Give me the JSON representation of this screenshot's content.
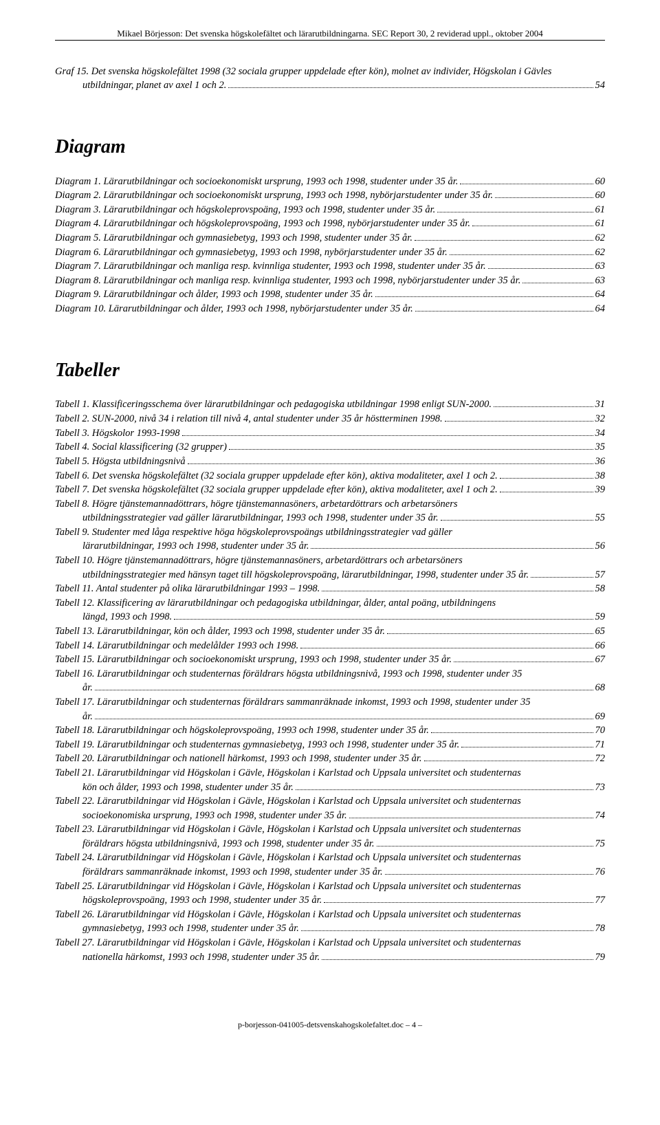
{
  "header": {
    "line": "Mikael Börjesson: Det svenska högskolefältet och lärarutbildningarna. SEC Report 30, 2 reviderad uppl., oktober 2004"
  },
  "graf": {
    "entries": [
      {
        "label": "Graf 15. Det svenska högskolefältet 1998 (32 sociala grupper uppdelade efter kön), molnet av individer, Högskolan i Gävles utbildningar, planet av axel 1 och 2.",
        "indentLabel": "",
        "page": "54"
      }
    ]
  },
  "diagram": {
    "heading": "Diagram",
    "entries": [
      {
        "label": "Diagram 1. Lärarutbildningar och socioekonomiskt ursprung, 1993 och 1998, studenter under 35 år.",
        "page": "60"
      },
      {
        "label": "Diagram 2. Lärarutbildningar och socioekonomiskt ursprung, 1993 och 1998, nybörjarstudenter under 35 år.",
        "page": "60"
      },
      {
        "label": "Diagram 3. Lärarutbildningar och högskoleprovspoäng, 1993 och 1998, studenter under 35 år.",
        "page": "61"
      },
      {
        "label": "Diagram 4. Lärarutbildningar och högskoleprovspoäng, 1993 och 1998, nybörjarstudenter under 35 år.",
        "page": "61"
      },
      {
        "label": "Diagram 5. Lärarutbildningar och gymnasiebetyg, 1993 och 1998, studenter under 35 år.",
        "page": "62"
      },
      {
        "label": "Diagram 6. Lärarutbildningar och gymnasiebetyg, 1993 och 1998, nybörjarstudenter under 35 år.",
        "page": "62"
      },
      {
        "label": "Diagram 7. Lärarutbildningar och manliga resp. kvinnliga studenter, 1993 och 1998, studenter under 35 år.",
        "page": "63"
      },
      {
        "label": "Diagram 8. Lärarutbildningar och manliga resp. kvinnliga studenter, 1993 och 1998, nybörjarstudenter under 35 år.",
        "page": "63"
      },
      {
        "label": "Diagram 9. Lärarutbildningar och ålder, 1993 och 1998, studenter under 35 år.",
        "page": "64"
      },
      {
        "label": "Diagram 10. Lärarutbildningar och ålder, 1993 och 1998, nybörjarstudenter under 35 år.",
        "page": "64"
      }
    ]
  },
  "tabeller": {
    "heading": "Tabeller",
    "entries": [
      {
        "label": "Tabell 1. Klassificeringsschema över lärarutbildningar och pedagogiska utbildningar 1998 enligt SUN-2000.",
        "page": "31"
      },
      {
        "label": "Tabell 2. SUN-2000, nivå 34 i relation till nivå 4, antal studenter under 35 år höstterminen 1998.",
        "page": "32"
      },
      {
        "label": "Tabell 3. Högskolor 1993-1998",
        "page": "34"
      },
      {
        "label": "Tabell 4. Social klassificering (32 grupper)",
        "page": "35"
      },
      {
        "label": "Tabell 5. Högsta utbildningsnivå",
        "page": "36"
      },
      {
        "label": "Tabell 6. Det svenska högskolefältet (32 sociala grupper uppdelade efter kön), aktiva modaliteter, axel 1 och 2.",
        "page": "38"
      },
      {
        "label": "Tabell 7. Det svenska högskolefältet (32 sociala grupper uppdelade efter kön), aktiva modaliteter, axel 1 och 2.",
        "page": "39"
      },
      {
        "label": "Tabell 8. Högre tjänstemannadöttrars, högre tjänstemannasöners, arbetardöttrars och arbetarsöners utbildningsstrategier vad gäller lärarutbildningar, 1993 och 1998, studenter under 35 år.",
        "page": "55",
        "wrap": true
      },
      {
        "label": "Tabell 9. Studenter med låga respektive höga högskoleprovspoängs utbildningsstrategier vad gäller lärarutbildningar, 1993 och 1998, studenter under 35 år.",
        "page": "56",
        "wrap": true
      },
      {
        "label": "Tabell 10. Högre tjänstemannadöttrars, högre tjänstemannasöners, arbetardöttrars och arbetarsöners utbildningsstrategier med hänsyn taget till högskoleprovspoäng, lärarutbildningar, 1998, studenter under 35 år.",
        "page": "57",
        "wrap": true
      },
      {
        "label": "Tabell 11. Antal studenter på olika lärarutbildningar 1993 – 1998.",
        "page": "58"
      },
      {
        "label": "Tabell 12. Klassificering av lärarutbildningar och pedagogiska utbildningar, ålder, antal poäng, utbildningens längd, 1993 och 1998.",
        "page": "59",
        "wrap": true
      },
      {
        "label": "Tabell 13. Lärarutbildningar, kön och ålder, 1993 och 1998, studenter under 35 år.",
        "page": "65"
      },
      {
        "label": "Tabell 14. Lärarutbildningar och medelålder 1993 och 1998.",
        "page": "66"
      },
      {
        "label": "Tabell 15. Lärarutbildningar och socioekonomiskt ursprung, 1993 och 1998, studenter under 35 år.",
        "page": "67"
      },
      {
        "label": "Tabell 16. Lärarutbildningar och studenternas föräldrars högsta utbildningsnivå, 1993 och 1998, studenter under 35 år.",
        "page": "68"
      },
      {
        "label": "Tabell 17. Lärarutbildningar och studenternas föräldrars sammanräknade inkomst, 1993 och 1998, studenter under 35 år.",
        "page": "69"
      },
      {
        "label": "Tabell 18. Lärarutbildningar och högskoleprovspoäng, 1993 och 1998, studenter under 35 år.",
        "page": "70"
      },
      {
        "label": "Tabell 19. Lärarutbildningar och studenternas gymnasiebetyg, 1993 och 1998, studenter under 35 år.",
        "page": "71"
      },
      {
        "label": "Tabell 20. Lärarutbildningar och nationell härkomst, 1993 och 1998, studenter under 35 år.",
        "page": "72"
      },
      {
        "label": "Tabell 21. Lärarutbildningar vid Högskolan i Gävle, Högskolan i Karlstad och Uppsala universitet och studenternas kön och ålder, 1993 och 1998, studenter under 35 år.",
        "page": "73",
        "wrap": true
      },
      {
        "label": "Tabell 22. Lärarutbildningar vid Högskolan i Gävle, Högskolan i Karlstad och Uppsala universitet och studenternas socioekonomiska ursprung, 1993 och 1998, studenter under 35 år.",
        "page": "74",
        "wrap": true
      },
      {
        "label": "Tabell 23. Lärarutbildningar vid Högskolan i Gävle, Högskolan i Karlstad och Uppsala universitet och studenternas föräldrars högsta utbildningsnivå, 1993 och 1998, studenter under 35 år.",
        "page": "75",
        "wrap": true
      },
      {
        "label": "Tabell 24. Lärarutbildningar vid Högskolan i Gävle, Högskolan i Karlstad och Uppsala universitet och studenternas föräldrars sammanräknade inkomst, 1993 och 1998, studenter under 35 år.",
        "page": "76",
        "wrap": true
      },
      {
        "label": "Tabell 25. Lärarutbildningar vid Högskolan i Gävle, Högskolan i Karlstad och Uppsala universitet och studenternas högskoleprovspoäng, 1993 och 1998, studenter under 35 år.",
        "page": "77",
        "wrap": true
      },
      {
        "label": "Tabell 26. Lärarutbildningar vid Högskolan i Gävle, Högskolan i Karlstad och Uppsala universitet och studenternas gymnasiebetyg, 1993 och 1998, studenter under 35 år.",
        "page": "78",
        "wrap": true
      },
      {
        "label": "Tabell 27. Lärarutbildningar vid Högskolan i Gävle, Högskolan i Karlstad och Uppsala universitet och studenternas nationella härkomst, 1993 och 1998, studenter under 35 år.",
        "page": "79",
        "wrap": true
      }
    ]
  },
  "footer": {
    "text": "p-borjesson-041005-detsvenskahogskolefaltet.doc  – 4 –"
  }
}
